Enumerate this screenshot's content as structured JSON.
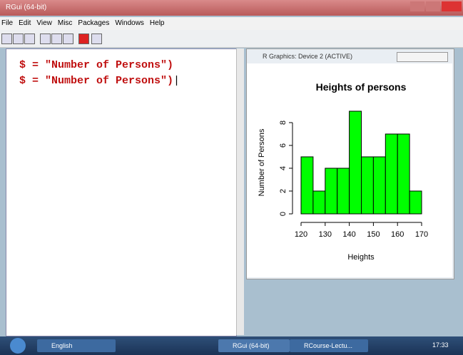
{
  "window": {
    "title": "RGui (64-bit)"
  },
  "menu": [
    "File",
    "Edit",
    "View",
    "Misc",
    "Packages",
    "Windows",
    "Help"
  ],
  "console": {
    "lines": [
      "$ = \"Number of Persons\")",
      "$ = \"Number of Persons\")"
    ]
  },
  "graphics_window": {
    "title": "R Graphics: Device 2 (ACTIVE)"
  },
  "taskbar": {
    "items": [
      "English",
      "RGui (64-bit)",
      "RCourse-Lectu..."
    ],
    "clock": "17:33"
  },
  "chart_data": {
    "type": "histogram",
    "title": "Heights of persons",
    "x_label": "Heights",
    "y_label": "Number of Persons",
    "bins": [
      120,
      125,
      130,
      135,
      140,
      145,
      150,
      155,
      160,
      165,
      170
    ],
    "values": [
      5,
      2,
      4,
      4,
      9,
      5,
      5,
      7,
      7,
      2
    ],
    "color": "#00ff00",
    "xlim": [
      120,
      170
    ],
    "xticks": [
      120,
      130,
      140,
      150,
      160,
      170
    ],
    "ylim": [
      0,
      9
    ],
    "yticks": [
      0,
      2,
      4,
      6,
      8
    ]
  }
}
